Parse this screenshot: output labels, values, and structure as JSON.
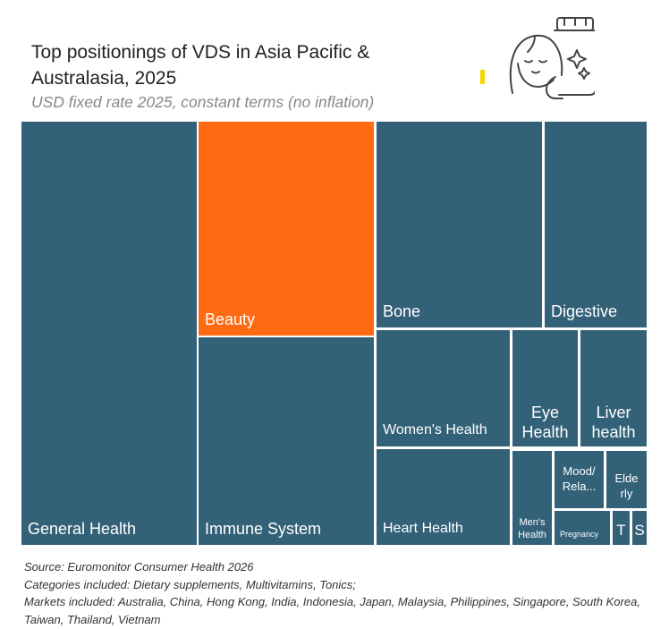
{
  "header": {
    "title": "Top positionings of VDS in Asia Pacific & Australasia, 2025",
    "subtitle": "USD fixed rate 2025, constant terms (no inflation)"
  },
  "chart_data": {
    "type": "treemap",
    "title": "Top positionings of VDS in Asia Pacific & Australasia, 2025",
    "subtitle": "USD fixed rate 2025, constant terms (no inflation)",
    "categories": [
      "General Health",
      "Beauty",
      "Immune System",
      "Bone",
      "Digestive",
      "Women's Health",
      "Eye Health",
      "Liver health",
      "Heart Health",
      "Men's Health",
      "Mood/Rela...",
      "Elderly",
      "Pregnancy",
      "T",
      "S"
    ],
    "highlight": "Beauty",
    "colors": {
      "default": "#336178",
      "highlight": "#FF6A13"
    }
  },
  "labels": {
    "general": "General Health",
    "beauty": "Beauty",
    "immune": "Immune System",
    "bone": "Bone",
    "digestive": "Digestive",
    "women": "Women's Health",
    "eye": "Eye Health",
    "liver": "Liver health",
    "heart": "Heart Health",
    "men": "Men's Health",
    "mood": "Mood/ Rela...",
    "elderly": "Elde rly",
    "pregnancy": "Pregnancy",
    "t": "T",
    "s": "S"
  },
  "notes": {
    "source": "Source: Euromonitor Consumer Health 2026",
    "categories": "Categories included: Dietary supplements, Multivitamins, Tonics;",
    "markets": "Markets included: Australia, China, Hong Kong, India, Indonesia, Japan, Malaysia, Philippines, Singapore, South Korea, Taiwan, Thailand, Vietnam"
  }
}
